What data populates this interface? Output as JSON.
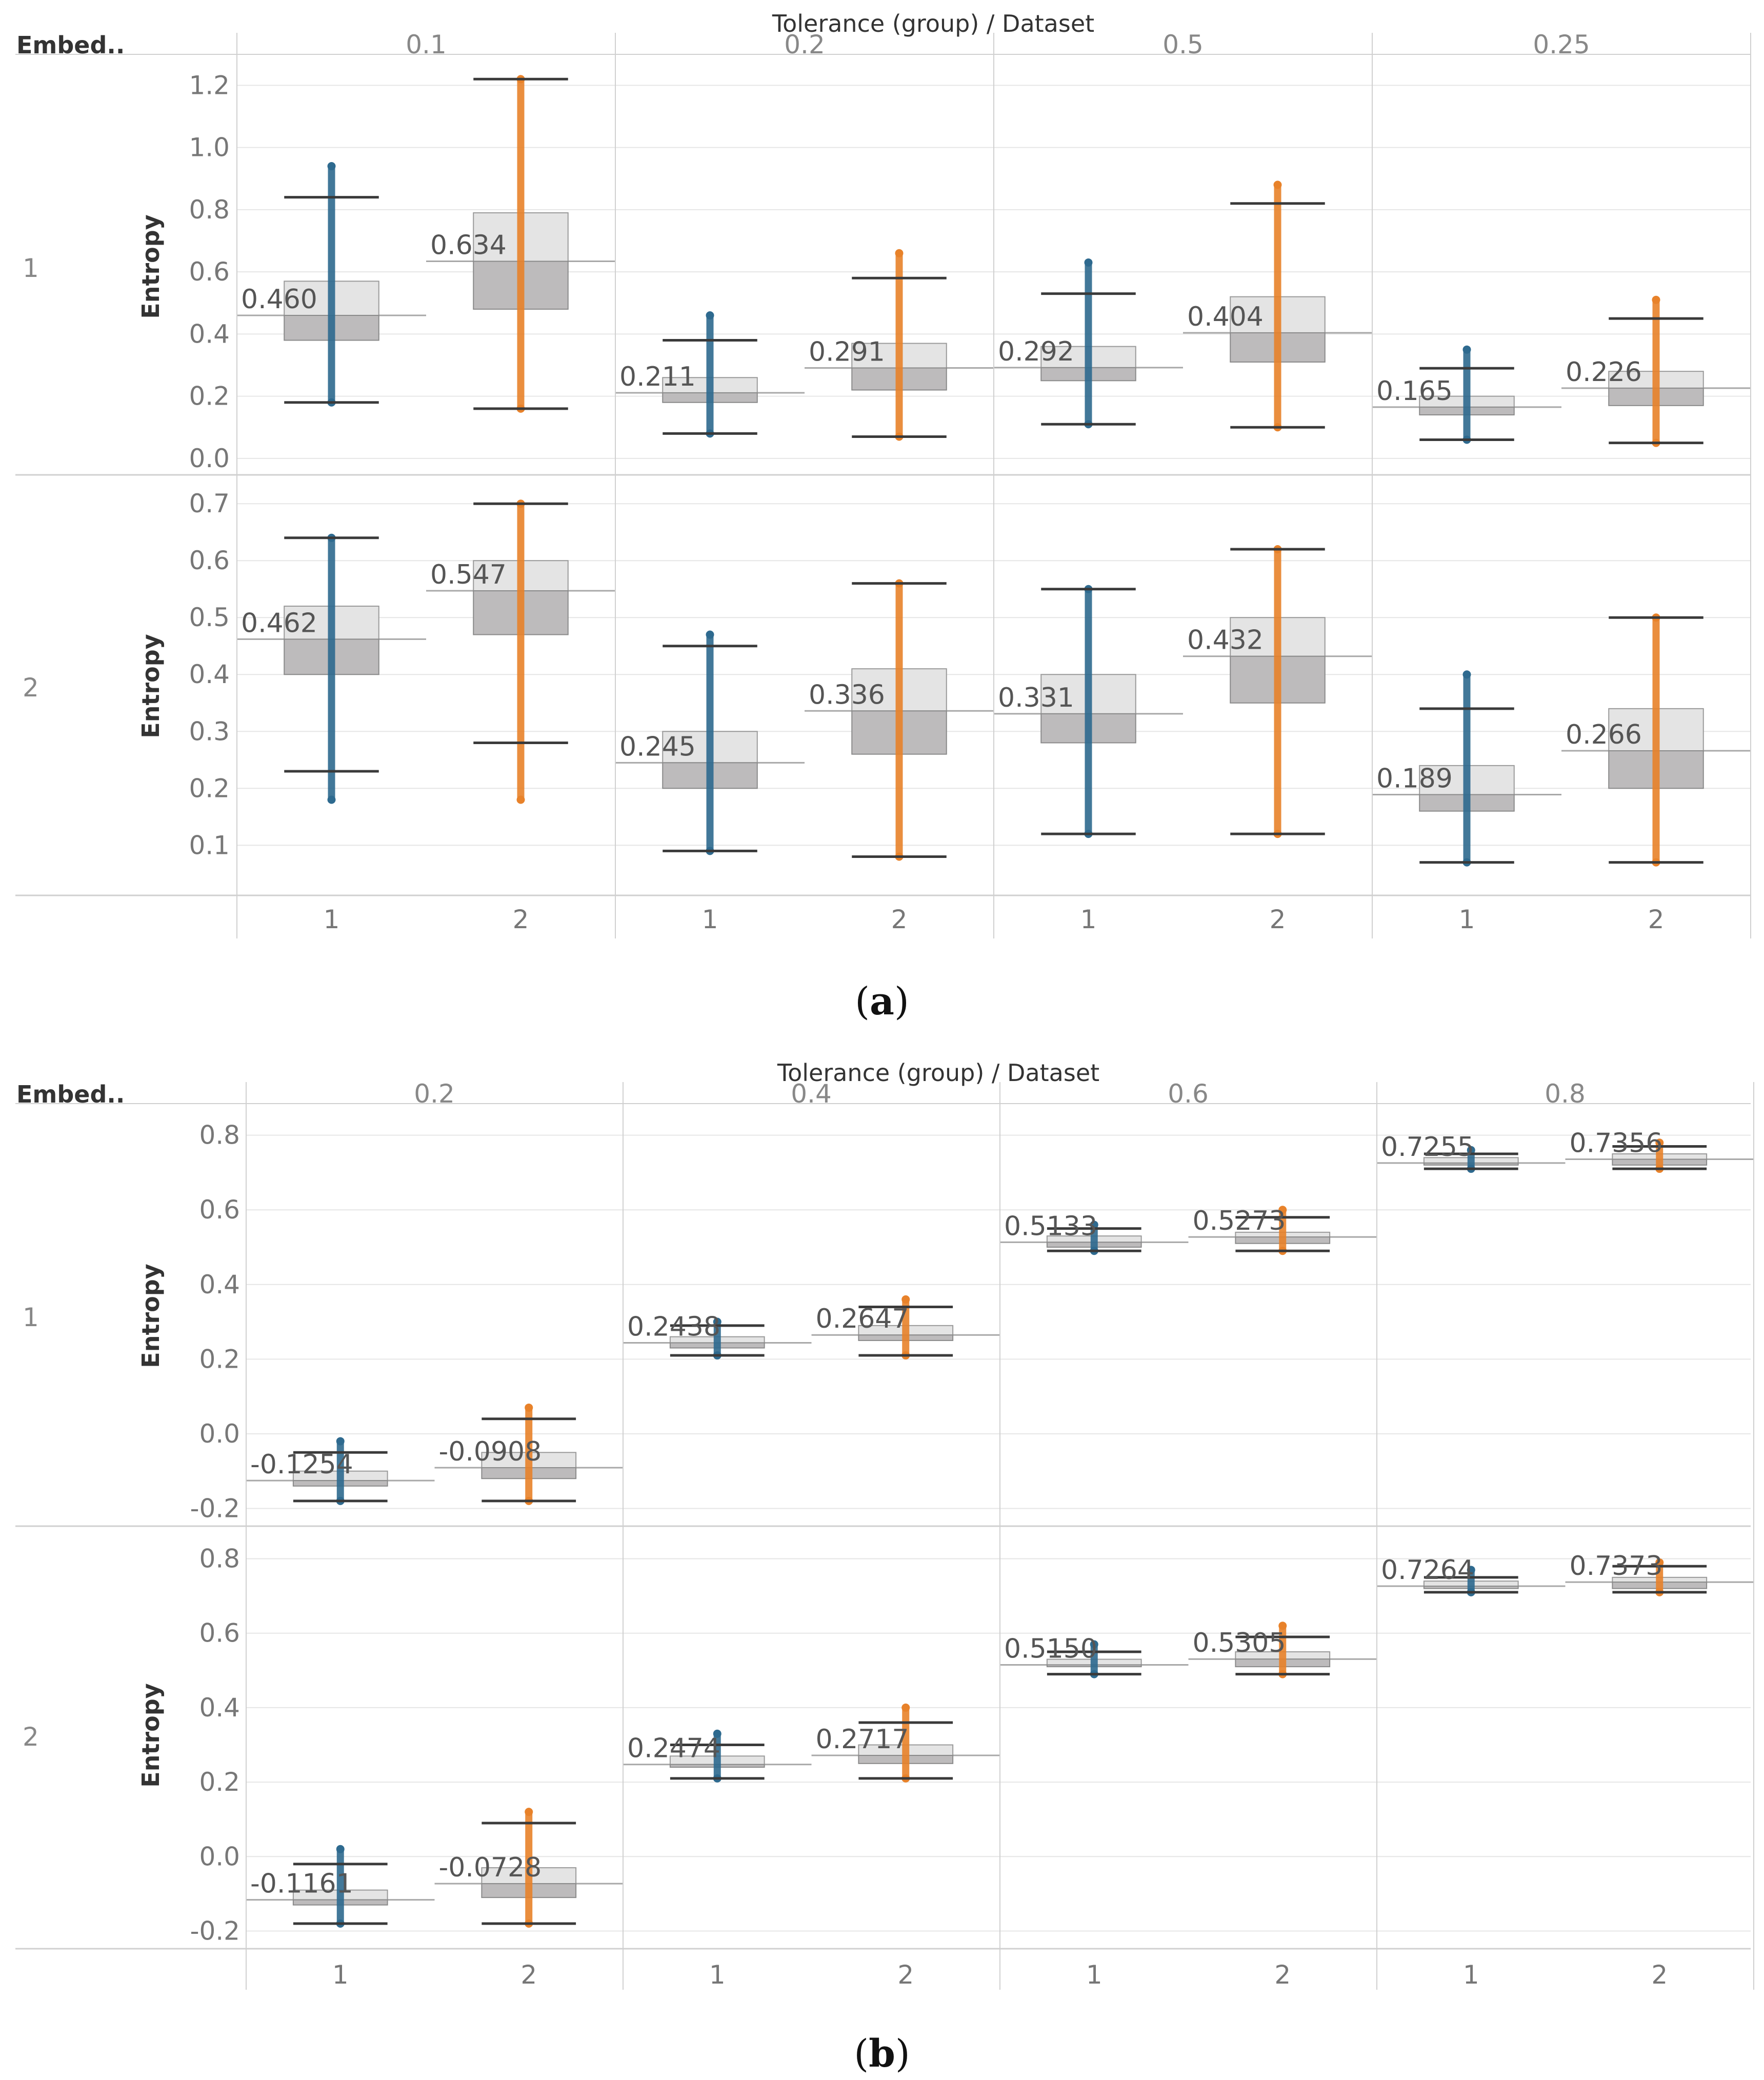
{
  "panels": [
    {
      "caption": {
        "open": "(",
        "letter": "a",
        "close": ")"
      },
      "header_title": "Tolerance (group)  /  Dataset",
      "corner_label": "Embed..",
      "y_axis_label": "Entropy",
      "x_labels": [
        "1",
        "2"
      ],
      "row_labels": [
        "1",
        "2"
      ],
      "column_labels": [
        "0.1",
        "0.2",
        "0.5",
        "0.25"
      ]
    },
    {
      "caption": {
        "open": "(",
        "letter": "b",
        "close": ")"
      },
      "header_title": "Tolerance (group)  /  Dataset",
      "corner_label": "Embed..",
      "y_axis_label": "Entropy",
      "x_labels": [
        "1",
        "2"
      ],
      "row_labels": [
        "1",
        "2"
      ],
      "column_labels": [
        "0.2",
        "0.4",
        "0.6",
        "0.8"
      ]
    }
  ],
  "colors": {
    "dataset1": "#2e6a8f",
    "dataset2": "#e8822a",
    "whisker": "#3a3a3a",
    "box_upper": "#e4e4e4",
    "box_lower": "#bdbbbc",
    "grid": "#e6e6e6",
    "divider": "#d0d0d0"
  },
  "chart_data": [
    {
      "type": "boxplot",
      "title": "(a)",
      "ylabel": "Entropy",
      "facets": {
        "column_header": "Tolerance (group) / Dataset",
        "row_header": "Embed..",
        "columns": [
          "0.1",
          "0.2",
          "0.5",
          "0.25"
        ],
        "rows": [
          "1",
          "2"
        ]
      },
      "rows": [
        {
          "row": "1",
          "ylim": [
            -0.02,
            1.27
          ],
          "yticks": [
            0.0,
            0.2,
            0.4,
            0.6,
            0.8,
            1.0,
            1.2
          ],
          "tick_labels": [
            "0.0",
            "0.2",
            "0.4",
            "0.6",
            "0.8",
            "1.0",
            "1.2"
          ],
          "boxes": [
            {
              "col": 0,
              "dataset": 1,
              "median": 0.46,
              "label": "0.460",
              "q1": 0.38,
              "q3": 0.57,
              "wlo": 0.18,
              "whi": 0.84,
              "dlo": 0.18,
              "dhi": 0.94
            },
            {
              "col": 0,
              "dataset": 2,
              "median": 0.634,
              "label": "0.634",
              "q1": 0.48,
              "q3": 0.79,
              "wlo": 0.16,
              "whi": 1.22,
              "dlo": 0.16,
              "dhi": 1.22
            },
            {
              "col": 1,
              "dataset": 1,
              "median": 0.211,
              "label": "0.211",
              "q1": 0.18,
              "q3": 0.26,
              "wlo": 0.08,
              "whi": 0.38,
              "dlo": 0.08,
              "dhi": 0.46
            },
            {
              "col": 1,
              "dataset": 2,
              "median": 0.291,
              "label": "0.291",
              "q1": 0.22,
              "q3": 0.37,
              "wlo": 0.07,
              "whi": 0.58,
              "dlo": 0.07,
              "dhi": 0.66
            },
            {
              "col": 2,
              "dataset": 1,
              "median": 0.292,
              "label": "0.292",
              "q1": 0.25,
              "q3": 0.36,
              "wlo": 0.11,
              "whi": 0.53,
              "dlo": 0.11,
              "dhi": 0.63
            },
            {
              "col": 2,
              "dataset": 2,
              "median": 0.404,
              "label": "0.404",
              "q1": 0.31,
              "q3": 0.52,
              "wlo": 0.1,
              "whi": 0.82,
              "dlo": 0.1,
              "dhi": 0.88
            },
            {
              "col": 3,
              "dataset": 1,
              "median": 0.165,
              "label": "0.165",
              "q1": 0.14,
              "q3": 0.2,
              "wlo": 0.06,
              "whi": 0.29,
              "dlo": 0.06,
              "dhi": 0.35
            },
            {
              "col": 3,
              "dataset": 2,
              "median": 0.226,
              "label": "0.226",
              "q1": 0.17,
              "q3": 0.28,
              "wlo": 0.05,
              "whi": 0.45,
              "dlo": 0.05,
              "dhi": 0.51
            }
          ]
        },
        {
          "row": "2",
          "ylim": [
            0.03,
            0.72
          ],
          "yticks": [
            0.1,
            0.2,
            0.3,
            0.4,
            0.5,
            0.6,
            0.7
          ],
          "tick_labels": [
            "0.1",
            "0.2",
            "0.3",
            "0.4",
            "0.5",
            "0.6",
            "0.7"
          ],
          "boxes": [
            {
              "col": 0,
              "dataset": 1,
              "median": 0.462,
              "label": "0.462",
              "q1": 0.4,
              "q3": 0.52,
              "wlo": 0.23,
              "whi": 0.64,
              "dlo": 0.18,
              "dhi": 0.64
            },
            {
              "col": 0,
              "dataset": 2,
              "median": 0.547,
              "label": "0.547",
              "q1": 0.47,
              "q3": 0.6,
              "wlo": 0.28,
              "whi": 0.7,
              "dlo": 0.18,
              "dhi": 0.7
            },
            {
              "col": 1,
              "dataset": 1,
              "median": 0.245,
              "label": "0.245",
              "q1": 0.2,
              "q3": 0.3,
              "wlo": 0.09,
              "whi": 0.45,
              "dlo": 0.09,
              "dhi": 0.47
            },
            {
              "col": 1,
              "dataset": 2,
              "median": 0.336,
              "label": "0.336",
              "q1": 0.26,
              "q3": 0.41,
              "wlo": 0.08,
              "whi": 0.56,
              "dlo": 0.08,
              "dhi": 0.56
            },
            {
              "col": 2,
              "dataset": 1,
              "median": 0.331,
              "label": "0.331",
              "q1": 0.28,
              "q3": 0.4,
              "wlo": 0.12,
              "whi": 0.55,
              "dlo": 0.12,
              "dhi": 0.55
            },
            {
              "col": 2,
              "dataset": 2,
              "median": 0.432,
              "label": "0.432",
              "q1": 0.35,
              "q3": 0.5,
              "wlo": 0.12,
              "whi": 0.62,
              "dlo": 0.12,
              "dhi": 0.62
            },
            {
              "col": 3,
              "dataset": 1,
              "median": 0.189,
              "label": "0.189",
              "q1": 0.16,
              "q3": 0.24,
              "wlo": 0.07,
              "whi": 0.34,
              "dlo": 0.07,
              "dhi": 0.4
            },
            {
              "col": 3,
              "dataset": 2,
              "median": 0.266,
              "label": "0.266",
              "q1": 0.2,
              "q3": 0.34,
              "wlo": 0.07,
              "whi": 0.5,
              "dlo": 0.07,
              "dhi": 0.5
            }
          ]
        }
      ]
    },
    {
      "type": "boxplot",
      "title": "(b)",
      "ylabel": "Entropy",
      "facets": {
        "column_header": "Tolerance (group) / Dataset",
        "row_header": "Embed..",
        "columns": [
          "0.2",
          "0.4",
          "0.6",
          "0.8"
        ],
        "rows": [
          "1",
          "2"
        ]
      },
      "rows": [
        {
          "row": "1",
          "ylim": [
            -0.22,
            0.86
          ],
          "yticks": [
            -0.2,
            0.0,
            0.2,
            0.4,
            0.6,
            0.8
          ],
          "tick_labels": [
            "-0.2",
            "0.0",
            "0.2",
            "0.4",
            "0.6",
            "0.8"
          ],
          "boxes": [
            {
              "col": 0,
              "dataset": 1,
              "median": -0.1254,
              "label": "-0.1254",
              "q1": -0.14,
              "q3": -0.1,
              "wlo": -0.18,
              "whi": -0.05,
              "dlo": -0.18,
              "dhi": -0.02
            },
            {
              "col": 0,
              "dataset": 2,
              "median": -0.0908,
              "label": "-0.0908",
              "q1": -0.12,
              "q3": -0.05,
              "wlo": -0.18,
              "whi": 0.04,
              "dlo": -0.18,
              "dhi": 0.07
            },
            {
              "col": 1,
              "dataset": 1,
              "median": 0.2438,
              "label": "0.2438",
              "q1": 0.23,
              "q3": 0.26,
              "wlo": 0.21,
              "whi": 0.29,
              "dlo": 0.21,
              "dhi": 0.3
            },
            {
              "col": 1,
              "dataset": 2,
              "median": 0.2647,
              "label": "0.2647",
              "q1": 0.25,
              "q3": 0.29,
              "wlo": 0.21,
              "whi": 0.34,
              "dlo": 0.21,
              "dhi": 0.36
            },
            {
              "col": 2,
              "dataset": 1,
              "median": 0.5133,
              "label": "0.5133",
              "q1": 0.5,
              "q3": 0.53,
              "wlo": 0.49,
              "whi": 0.55,
              "dlo": 0.49,
              "dhi": 0.56
            },
            {
              "col": 2,
              "dataset": 2,
              "median": 0.5273,
              "label": "0.5273",
              "q1": 0.51,
              "q3": 0.54,
              "wlo": 0.49,
              "whi": 0.58,
              "dlo": 0.49,
              "dhi": 0.6
            },
            {
              "col": 3,
              "dataset": 1,
              "median": 0.7255,
              "label": "0.7255",
              "q1": 0.72,
              "q3": 0.74,
              "wlo": 0.71,
              "whi": 0.75,
              "dlo": 0.71,
              "dhi": 0.76
            },
            {
              "col": 3,
              "dataset": 2,
              "median": 0.7356,
              "label": "0.7356",
              "q1": 0.72,
              "q3": 0.75,
              "wlo": 0.71,
              "whi": 0.77,
              "dlo": 0.71,
              "dhi": 0.78
            }
          ]
        },
        {
          "row": "2",
          "ylim": [
            -0.22,
            0.86
          ],
          "yticks": [
            -0.2,
            0.0,
            0.2,
            0.4,
            0.6,
            0.8
          ],
          "tick_labels": [
            "-0.2",
            "0.0",
            "0.2",
            "0.4",
            "0.6",
            "0.8"
          ],
          "boxes": [
            {
              "col": 0,
              "dataset": 1,
              "median": -0.1161,
              "label": "-0.1161",
              "q1": -0.13,
              "q3": -0.09,
              "wlo": -0.18,
              "whi": -0.02,
              "dlo": -0.18,
              "dhi": 0.02
            },
            {
              "col": 0,
              "dataset": 2,
              "median": -0.0728,
              "label": "-0.0728",
              "q1": -0.11,
              "q3": -0.03,
              "wlo": -0.18,
              "whi": 0.09,
              "dlo": -0.18,
              "dhi": 0.12
            },
            {
              "col": 1,
              "dataset": 1,
              "median": 0.2474,
              "label": "0.2474",
              "q1": 0.24,
              "q3": 0.27,
              "wlo": 0.21,
              "whi": 0.3,
              "dlo": 0.21,
              "dhi": 0.33
            },
            {
              "col": 1,
              "dataset": 2,
              "median": 0.2717,
              "label": "0.2717",
              "q1": 0.25,
              "q3": 0.3,
              "wlo": 0.21,
              "whi": 0.36,
              "dlo": 0.21,
              "dhi": 0.4
            },
            {
              "col": 2,
              "dataset": 1,
              "median": 0.515,
              "label": "0.5150",
              "q1": 0.51,
              "q3": 0.53,
              "wlo": 0.49,
              "whi": 0.55,
              "dlo": 0.49,
              "dhi": 0.57
            },
            {
              "col": 2,
              "dataset": 2,
              "median": 0.5305,
              "label": "0.5305",
              "q1": 0.51,
              "q3": 0.55,
              "wlo": 0.49,
              "whi": 0.59,
              "dlo": 0.49,
              "dhi": 0.62
            },
            {
              "col": 3,
              "dataset": 1,
              "median": 0.7264,
              "label": "0.7264",
              "q1": 0.72,
              "q3": 0.74,
              "wlo": 0.71,
              "whi": 0.75,
              "dlo": 0.71,
              "dhi": 0.77
            },
            {
              "col": 3,
              "dataset": 2,
              "median": 0.7373,
              "label": "0.7373",
              "q1": 0.72,
              "q3": 0.75,
              "wlo": 0.71,
              "whi": 0.78,
              "dlo": 0.71,
              "dhi": 0.79
            }
          ]
        }
      ]
    }
  ]
}
